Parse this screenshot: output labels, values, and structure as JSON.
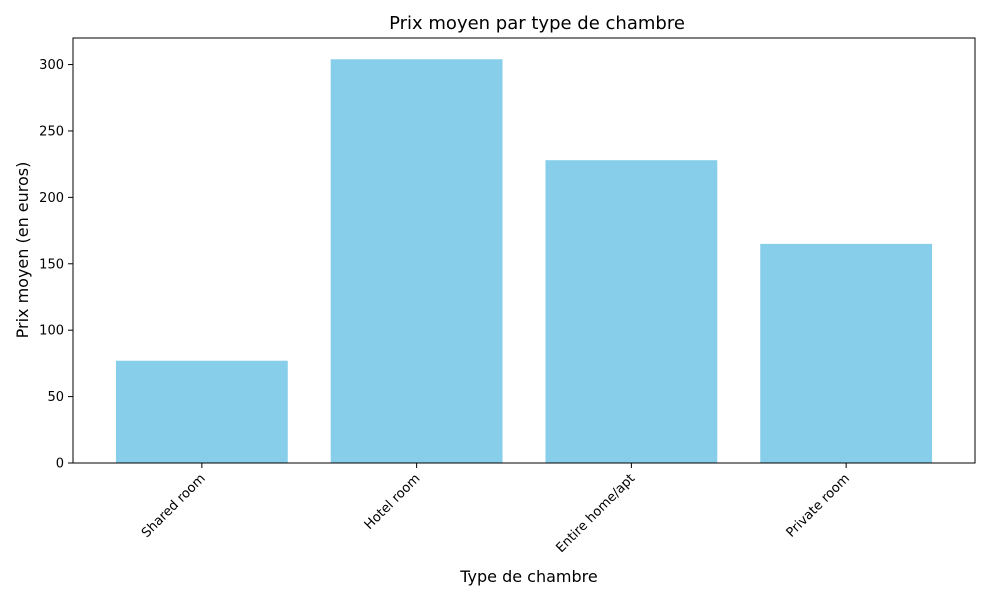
{
  "chart_data": {
    "type": "bar",
    "title": "Prix moyen par type de chambre",
    "xlabel": "Type de chambre",
    "ylabel": "Prix moyen (en euros)",
    "categories": [
      "Shared room",
      "Hotel room",
      "Entire home/apt",
      "Private room"
    ],
    "values": [
      77,
      304,
      228,
      165
    ],
    "ylim": [
      0,
      320
    ],
    "yticks": [
      0,
      50,
      100,
      150,
      200,
      250,
      300
    ],
    "ytick_labels": [
      "0",
      "50",
      "100",
      "150",
      "200",
      "250",
      "300"
    ],
    "bar_color": "#87ceeb",
    "grid": false,
    "xtick_rotation": 45
  }
}
